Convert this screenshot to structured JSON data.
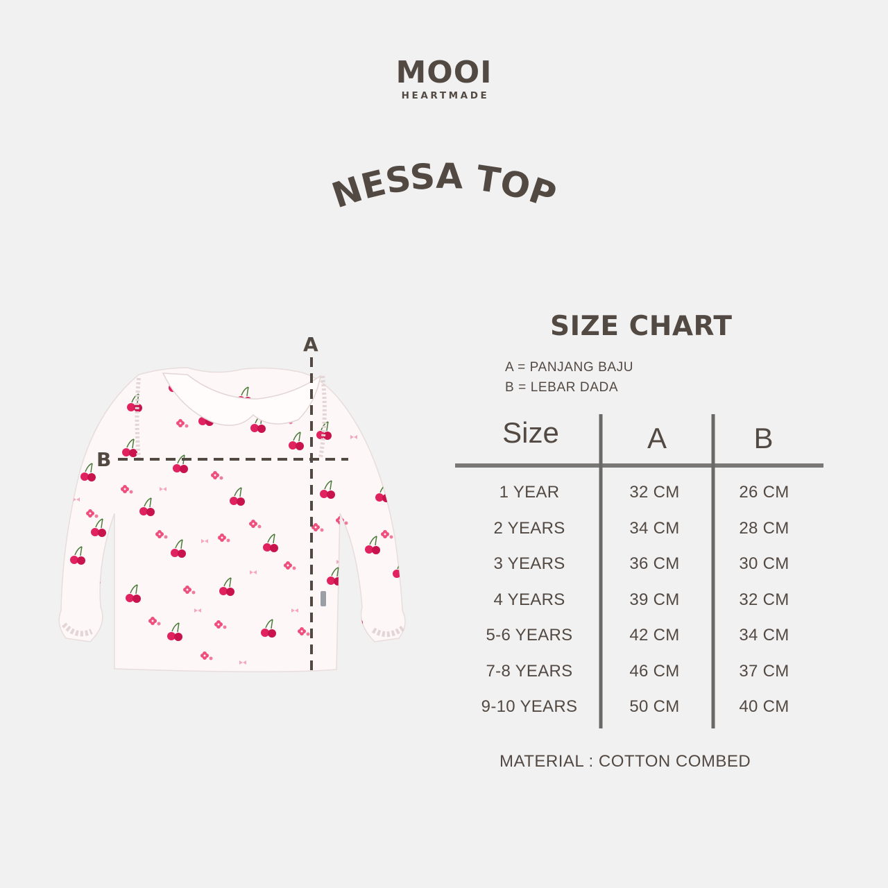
{
  "brand": {
    "name": "MOOI",
    "tagline": "HEARTMADE"
  },
  "product_title": "NESSA TOP",
  "diagram": {
    "label_a": "A",
    "label_b": "B"
  },
  "size_chart": {
    "title": "SIZE CHART",
    "legend": [
      "A = PANJANG BAJU",
      "B = LEBAR DADA"
    ],
    "columns": [
      "Size",
      "A",
      "B"
    ],
    "rows": [
      [
        "1 YEAR",
        "32 CM",
        "26 CM"
      ],
      [
        "2 YEARS",
        "34 CM",
        "28 CM"
      ],
      [
        "3 YEARS",
        "36 CM",
        "30 CM"
      ],
      [
        "4 YEARS",
        "39 CM",
        "32 CM"
      ],
      [
        "5-6 YEARS",
        "42 CM",
        "34 CM"
      ],
      [
        "7-8 YEARS",
        "46 CM",
        "37 CM"
      ],
      [
        "9-10 YEARS",
        "50 CM",
        "40 CM"
      ]
    ]
  },
  "material": "MATERIAL : COTTON COMBED",
  "colors": {
    "text": "#534943",
    "background": "#f1f1f1",
    "print": "#e0235f"
  }
}
